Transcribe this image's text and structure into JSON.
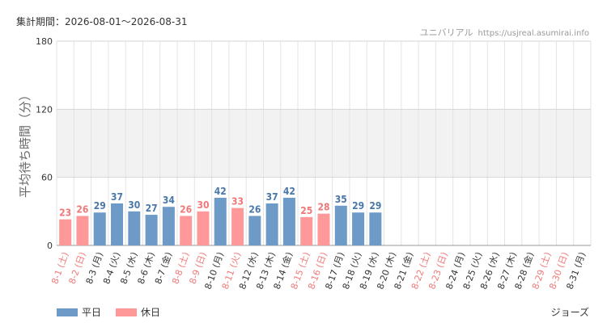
{
  "header": {
    "period": "集計期間：2026-08-01～2026-08-31",
    "park": "ユニバリアル",
    "site": "https://usjreal.asumirai.info"
  },
  "legend": {
    "weekday": "平日",
    "holiday": "休日"
  },
  "footer": {
    "attraction": "ジョーズ"
  },
  "colors": {
    "weekday": "#6e9ac8",
    "holiday": "#ff9999",
    "band": "#f2f2f2",
    "grid": "#e3e3e3"
  },
  "chart_data": {
    "type": "bar",
    "ylabel": "平均待ち時間（分）",
    "ylim": [
      0,
      180
    ],
    "yticks": [
      0,
      60,
      120,
      180
    ],
    "shaded_band": [
      60,
      120
    ],
    "categories": [
      "8-1 (土)",
      "8-2 (日)",
      "8-3 (月)",
      "8-4 (火)",
      "8-5 (水)",
      "8-6 (木)",
      "8-7 (金)",
      "8-8 (土)",
      "8-9 (日)",
      "8-10 (月)",
      "8-11 (火)",
      "8-12 (水)",
      "8-13 (木)",
      "8-14 (金)",
      "8-15 (土)",
      "8-16 (日)",
      "8-17 (月)",
      "8-18 (火)",
      "8-19 (水)",
      "8-20 (木)",
      "8-21 (金)",
      "8-22 (土)",
      "8-23 (日)",
      "8-24 (月)",
      "8-25 (火)",
      "8-26 (水)",
      "8-27 (木)",
      "8-28 (金)",
      "8-29 (土)",
      "8-30 (日)",
      "8-31 (月)"
    ],
    "day_type": [
      "holiday",
      "holiday",
      "weekday",
      "weekday",
      "weekday",
      "weekday",
      "weekday",
      "holiday",
      "holiday",
      "weekday",
      "holiday",
      "weekday",
      "weekday",
      "weekday",
      "holiday",
      "holiday",
      "weekday",
      "weekday",
      "weekday",
      "weekday",
      "weekday",
      "holiday",
      "holiday",
      "weekday",
      "weekday",
      "weekday",
      "weekday",
      "weekday",
      "holiday",
      "holiday",
      "weekday"
    ],
    "values": [
      23,
      26,
      29,
      37,
      30,
      27,
      34,
      26,
      30,
      42,
      33,
      26,
      37,
      42,
      25,
      28,
      35,
      29,
      29,
      null,
      null,
      null,
      null,
      null,
      null,
      null,
      null,
      null,
      null,
      null,
      null
    ]
  }
}
